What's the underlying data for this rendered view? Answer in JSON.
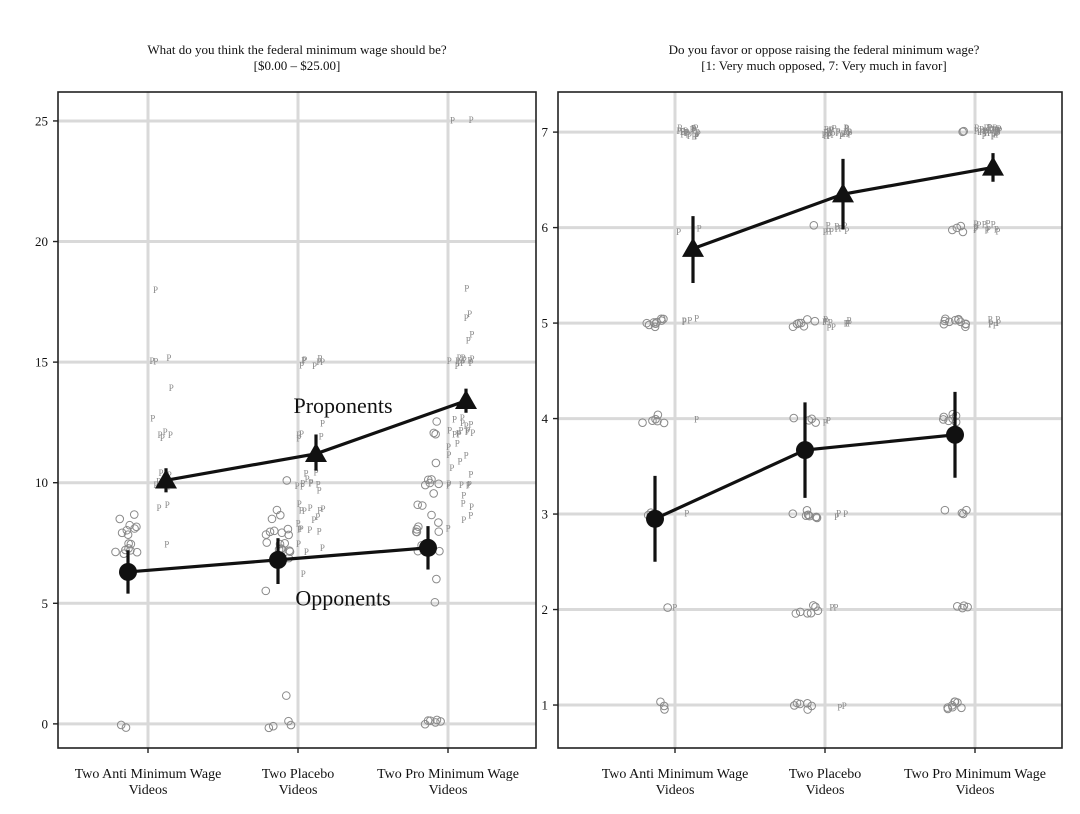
{
  "chart_data": [
    {
      "type": "scatter",
      "title": "What do you think the federal minimum wage should be?",
      "subtitle": "[$0.00 – $25.00]",
      "categories": [
        "Two Anti Minimum Wage Videos",
        "Two Placebo Videos",
        "Two Pro Minimum Wage Videos"
      ],
      "category_lines": [
        [
          "Two Anti Minimum Wage",
          "Videos"
        ],
        [
          "Two Placebo",
          "Videos"
        ],
        [
          "Two Pro Minimum Wage",
          "Videos"
        ]
      ],
      "ylim": [
        -1,
        26.2
      ],
      "yticks": [
        0,
        5,
        10,
        15,
        20,
        25
      ],
      "grid": true,
      "series": [
        {
          "name": "Proponents",
          "marker": "triangle",
          "values": [
            10.1,
            11.2,
            13.4
          ],
          "ci": [
            [
              9.6,
              10.6
            ],
            [
              10.5,
              12.0
            ],
            [
              12.9,
              13.9
            ]
          ],
          "raw": [
            [
              18,
              15,
              15,
              15,
              14,
              12.5,
              12,
              12,
              12,
              12,
              10.5,
              10.5,
              10,
              10,
              10,
              10,
              10,
              9,
              9,
              7.3
            ],
            [
              15,
              15,
              15,
              15,
              15,
              15,
              15,
              12.5,
              12,
              12,
              12,
              12,
              10.5,
              10.5,
              10,
              10,
              10,
              10,
              10,
              10,
              10,
              9.5,
              9,
              9,
              9,
              9,
              9,
              9,
              8.5,
              8.5,
              8.5,
              8,
              8,
              8,
              8,
              7.3,
              7.3,
              7.3,
              6.2
            ],
            [
              25,
              25,
              18,
              17,
              17,
              16,
              16,
              15,
              15,
              15,
              15,
              15,
              15,
              15,
              15,
              15,
              15,
              15,
              12.5,
              12.5,
              12.5,
              12.5,
              12.5,
              12,
              12,
              12,
              12,
              12,
              12,
              12,
              12,
              11.5,
              11.5,
              11,
              11,
              11,
              10.5,
              10.5,
              10,
              10,
              10,
              10,
              10,
              9.5,
              9,
              9,
              8.5,
              8.5,
              8
            ]
          ]
        },
        {
          "name": "Opponents",
          "marker": "circle",
          "values": [
            6.3,
            6.8,
            7.3
          ],
          "ci": [
            [
              5.4,
              7.2
            ],
            [
              5.8,
              7.7
            ],
            [
              6.4,
              8.2
            ]
          ],
          "raw": [
            [
              8.5,
              8.5,
              8.2,
              8,
              8,
              8,
              8,
              8,
              7.5,
              7.3,
              7.3,
              7.3,
              7.3,
              7.3,
              7.3,
              7,
              0,
              0
            ],
            [
              10,
              9,
              8.5,
              8.5,
              8,
              8,
              8,
              8,
              8,
              8,
              7.5,
              7.5,
              7.3,
              7.3,
              7.3,
              7.3,
              7.3,
              7.3,
              7.3,
              7,
              5.5,
              1,
              0,
              0,
              0,
              0
            ],
            [
              12.5,
              12,
              12,
              11,
              10,
              10,
              10,
              10,
              10,
              9.5,
              9,
              9,
              8.5,
              8.5,
              8,
              8,
              8,
              8,
              8,
              7.5,
              7.3,
              7.3,
              7.3,
              7.3,
              7,
              7,
              6,
              5,
              0,
              0,
              0,
              0,
              0,
              0
            ]
          ]
        }
      ],
      "annotations": [
        {
          "text": "Proponents",
          "x": 1.3,
          "y": 12.9
        },
        {
          "text": "Opponents",
          "x": 1.3,
          "y": 4.9
        }
      ]
    },
    {
      "type": "scatter",
      "title": "Do you favor or oppose raising the federal minimum wage?",
      "subtitle": "[1: Very much opposed, 7: Very much in favor]",
      "categories": [
        "Two Anti Minimum Wage Videos",
        "Two Placebo Videos",
        "Two Pro Minimum Wage Videos"
      ],
      "category_lines": [
        [
          "Two Anti Minimum Wage",
          "Videos"
        ],
        [
          "Two Placebo",
          "Videos"
        ],
        [
          "Two Pro Minimum Wage",
          "Videos"
        ]
      ],
      "ylim": [
        0.55,
        7.42
      ],
      "yticks": [
        1,
        2,
        3,
        4,
        5,
        6,
        7
      ],
      "grid": true,
      "series": [
        {
          "name": "Proponents",
          "marker": "triangle",
          "values": [
            5.78,
            6.35,
            6.63
          ],
          "ci": [
            [
              5.42,
              6.12
            ],
            [
              5.98,
              6.72
            ],
            [
              6.48,
              6.78
            ]
          ],
          "raw": [
            [
              7,
              7,
              7,
              7,
              7,
              7,
              7,
              7,
              7,
              7,
              7,
              7,
              7,
              7,
              7,
              7,
              7,
              7,
              7,
              7,
              6,
              6,
              5,
              5,
              5,
              5,
              4,
              3,
              2
            ],
            [
              7,
              7,
              7,
              7,
              7,
              7,
              7,
              7,
              7,
              7,
              7,
              7,
              7,
              7,
              7,
              7,
              7,
              7,
              7,
              7,
              7,
              7,
              7,
              7,
              6,
              6,
              6,
              6,
              6,
              6,
              6,
              6,
              6,
              5,
              5,
              5,
              5,
              5,
              5,
              5,
              5,
              5,
              5,
              4,
              4,
              3,
              3,
              3,
              2,
              2,
              1,
              1
            ],
            [
              7,
              7,
              7,
              7,
              7,
              7,
              7,
              7,
              7,
              7,
              7,
              7,
              7,
              7,
              7,
              7,
              7,
              7,
              7,
              7,
              7,
              7,
              7,
              7,
              7,
              7,
              7,
              7,
              7,
              7,
              6,
              6,
              6,
              6,
              6,
              6,
              6,
              6,
              6,
              6,
              6,
              6,
              5,
              5,
              5,
              5,
              5,
              5
            ]
          ]
        },
        {
          "name": "Opponents",
          "marker": "circle",
          "values": [
            2.95,
            3.67,
            3.83
          ],
          "ci": [
            [
              2.5,
              3.4
            ],
            [
              3.17,
              4.17
            ],
            [
              3.38,
              4.28
            ]
          ],
          "raw": [
            [
              5,
              5,
              5,
              5,
              5,
              5,
              5,
              5,
              5,
              4,
              4,
              4,
              4,
              4,
              4,
              3,
              3,
              3,
              2,
              1,
              1,
              1
            ],
            [
              6,
              5,
              5,
              5,
              5,
              5,
              5,
              5,
              4,
              4,
              4,
              4,
              3,
              3,
              3,
              3,
              3,
              3,
              3,
              3,
              3,
              2,
              2,
              2,
              2,
              2,
              2,
              2,
              1,
              1,
              1,
              1,
              1,
              1
            ],
            [
              7,
              7,
              6,
              6,
              6,
              6,
              5,
              5,
              5,
              5,
              5,
              5,
              5,
              5,
              5,
              5,
              5,
              4,
              4,
              4,
              4,
              4,
              4,
              4,
              3,
              3,
              3,
              3,
              2,
              2,
              2,
              2,
              1,
              1,
              1,
              1,
              1,
              1,
              1,
              1
            ]
          ]
        }
      ],
      "annotations": []
    }
  ]
}
